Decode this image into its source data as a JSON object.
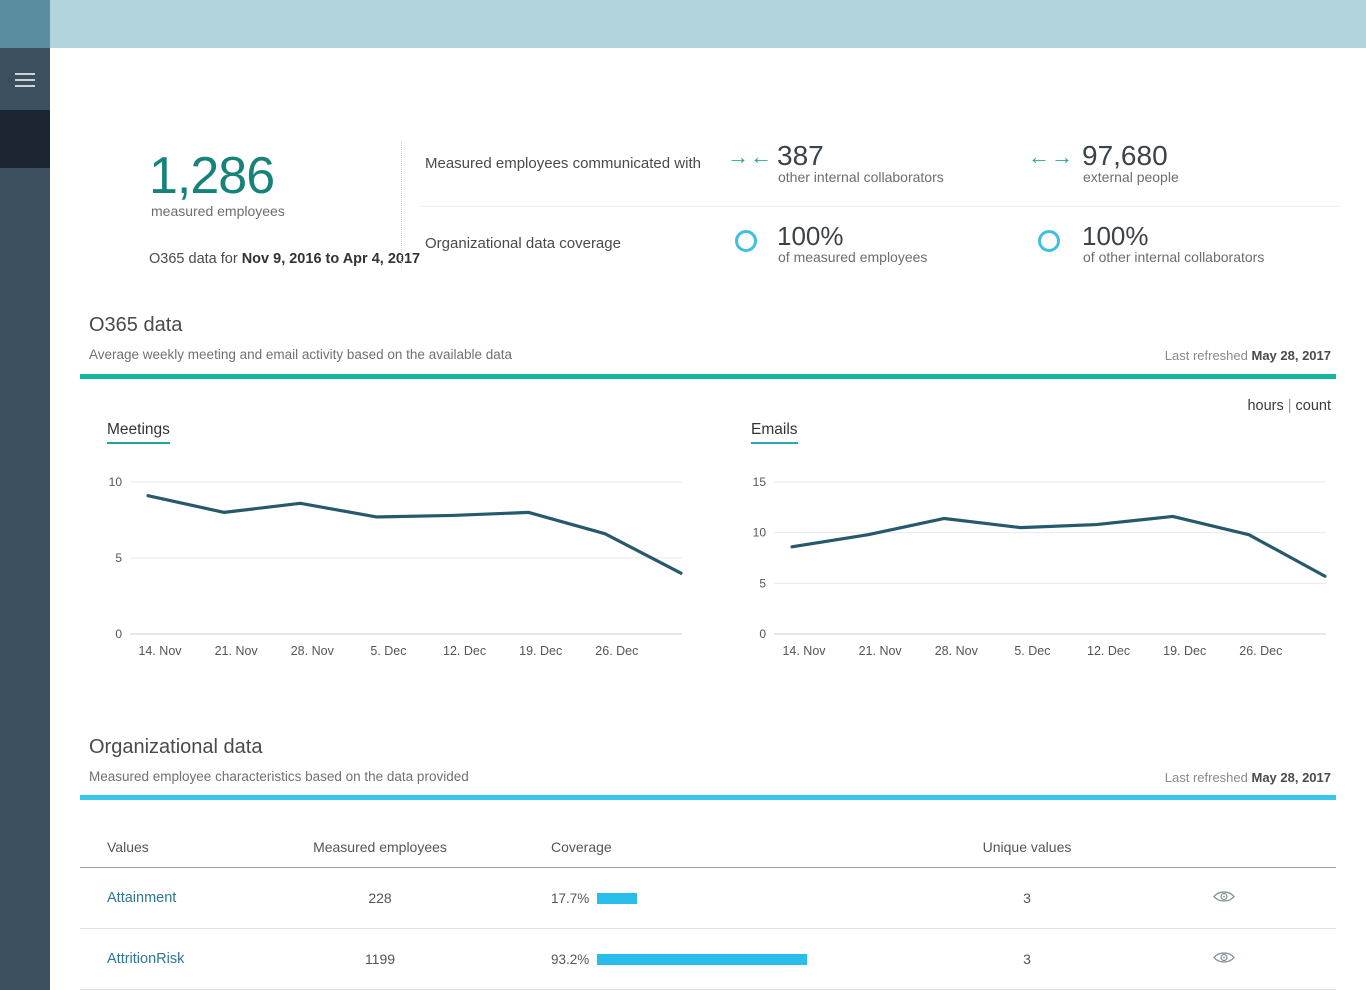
{
  "chrome": {
    "header_color": "#b2d4dc",
    "sidebar_main_color": "#3b4f5f",
    "sidebar_top_color": "#5b8da0",
    "sidebar_active_color": "#1c2633"
  },
  "summary": {
    "measured_value": "1,286",
    "measured_label": "measured employees",
    "period_prefix": "O365 data for ",
    "period_range": "Nov 9, 2016 to Apr 4, 2017",
    "communicated_label": "Measured employees communicated with",
    "internal_value": "387",
    "internal_label": "other internal collaborators",
    "internal_arrows": "→←",
    "external_value": "97,680",
    "external_label": "external people",
    "external_arrows": "←→",
    "coverage_label": "Organizational data coverage",
    "coverage1_value": "100%",
    "coverage1_label": "of measured employees",
    "coverage2_value": "100%",
    "coverage2_label": "of other internal collaborators",
    "arrow_color": "#28a79a",
    "ring_color": "#3fc0de",
    "number_color": "#16837a"
  },
  "o365": {
    "title": "O365 data",
    "subtitle": "Average weekly meeting and email activity based on the available data",
    "refresh_prefix": "Last refreshed ",
    "refresh_date": "May 28, 2017",
    "unit_hours": "hours",
    "unit_separator": "|",
    "unit_count": "count",
    "accent": "#14b5a0"
  },
  "chart_data": [
    {
      "type": "line",
      "title": "Meetings",
      "x_labels": [
        "14. Nov",
        "21. Nov",
        "28. Nov",
        "5. Dec",
        "12. Dec",
        "19. Dec",
        "26. Dec"
      ],
      "values": [
        9.1,
        8.0,
        8.6,
        7.7,
        7.8,
        8.0,
        6.6,
        4.0
      ],
      "y_ticks": [
        0,
        5,
        10
      ],
      "ylim": [
        0,
        10
      ],
      "line_color": "#26596c",
      "underline_color": "#1fa39b",
      "grid": true,
      "legend": "none"
    },
    {
      "type": "line",
      "title": "Emails",
      "x_labels": [
        "14. Nov",
        "21. Nov",
        "28. Nov",
        "5. Dec",
        "12. Dec",
        "19. Dec",
        "26. Dec"
      ],
      "values": [
        8.6,
        9.8,
        11.4,
        10.5,
        10.8,
        11.6,
        9.8,
        5.7
      ],
      "y_ticks": [
        0,
        5,
        10,
        15
      ],
      "ylim": [
        0,
        15
      ],
      "line_color": "#26596c",
      "underline_color": "#2aa9b4",
      "grid": true,
      "legend": "none"
    }
  ],
  "org": {
    "title": "Organizational data",
    "subtitle": "Measured employee characteristics based on the data provided",
    "refresh_prefix": "Last refreshed ",
    "refresh_date": "May 28, 2017",
    "accent": "#38c6ec",
    "table": {
      "headers": [
        "Values",
        "Measured employees",
        "Coverage",
        "Unique values"
      ],
      "bar_color": "#29bdec",
      "rows": [
        {
          "name": "Attainment",
          "employees": "228",
          "coverage_label": "17.7%",
          "coverage_value": 17.7,
          "unique": "3"
        },
        {
          "name": "AttritionRisk",
          "employees": "1199",
          "coverage_label": "93.2%",
          "coverage_value": 93.2,
          "unique": "3"
        }
      ]
    }
  }
}
